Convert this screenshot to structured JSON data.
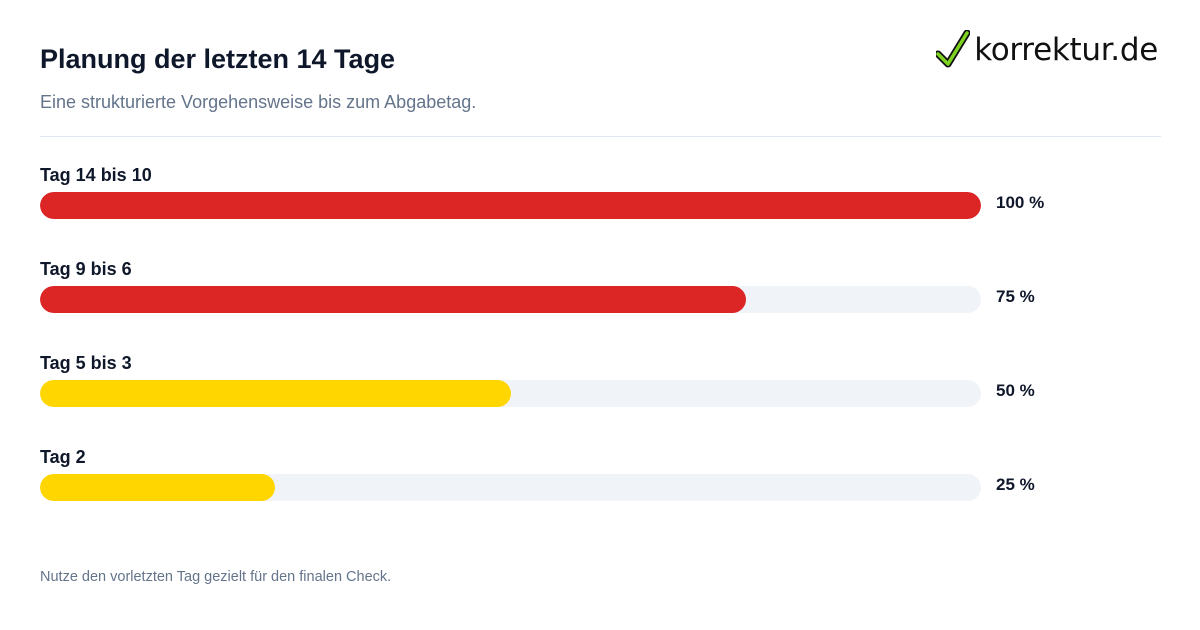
{
  "header": {
    "title": "Planung der letzten 14 Tage",
    "subtitle": "Eine strukturierte Vorgehensweise bis zum Abgabetag.",
    "logo_text": "korrektur.de",
    "logo_icon": "checkmark-icon"
  },
  "colors": {
    "red": "#dc2626",
    "yellow": "#ffd600",
    "track": "#f0f3f8",
    "logo_check": "#7ed321"
  },
  "chart_data": {
    "type": "bar",
    "orientation": "horizontal",
    "categories": [
      "Tag 14 bis 10",
      "Tag 9 bis 6",
      "Tag 5 bis 3",
      "Tag 2"
    ],
    "values": [
      100,
      75,
      50,
      25
    ],
    "value_labels": [
      "100 %",
      "75 %",
      "50 %",
      "25 %"
    ],
    "bar_colors": [
      "#dc2626",
      "#dc2626",
      "#ffd600",
      "#ffd600"
    ],
    "xlim": [
      0,
      100
    ],
    "title": "Planung der letzten 14 Tage",
    "subtitle": "Eine strukturierte Vorgehensweise bis zum Abgabetag.",
    "grid": false
  },
  "footer": {
    "note": "Nutze den vorletzten Tag gezielt für den finalen Check."
  }
}
